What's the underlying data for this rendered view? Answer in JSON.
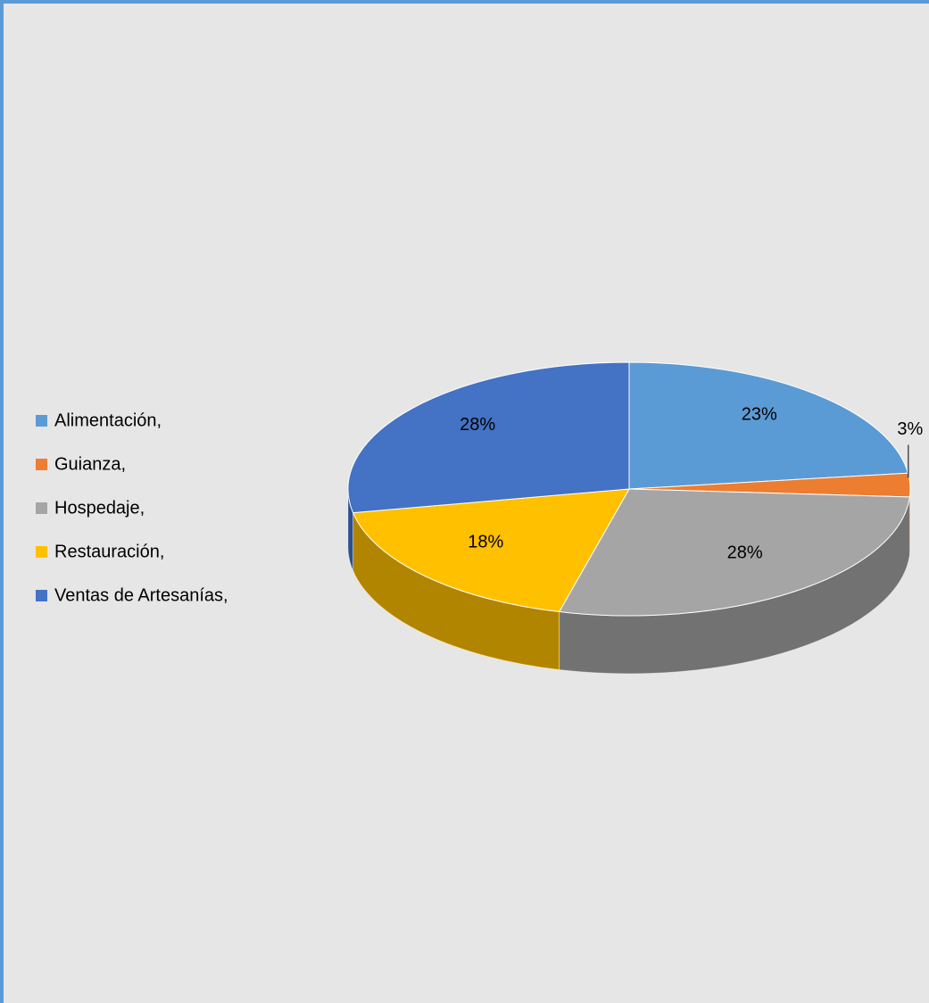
{
  "chart_data": {
    "type": "pie",
    "categories": [
      "Alimentación,",
      "Guianza,",
      "Hospedaje,",
      "Restauración,",
      "Ventas de Artesanías,"
    ],
    "values": [
      23,
      3,
      28,
      18,
      28
    ],
    "value_labels": [
      "23%",
      "3%",
      "28%",
      "18%",
      "28%"
    ],
    "colors": [
      "#5b9bd5",
      "#ed7d31",
      "#a5a5a5",
      "#ffc000",
      "#4472c4"
    ],
    "legend": "left"
  }
}
